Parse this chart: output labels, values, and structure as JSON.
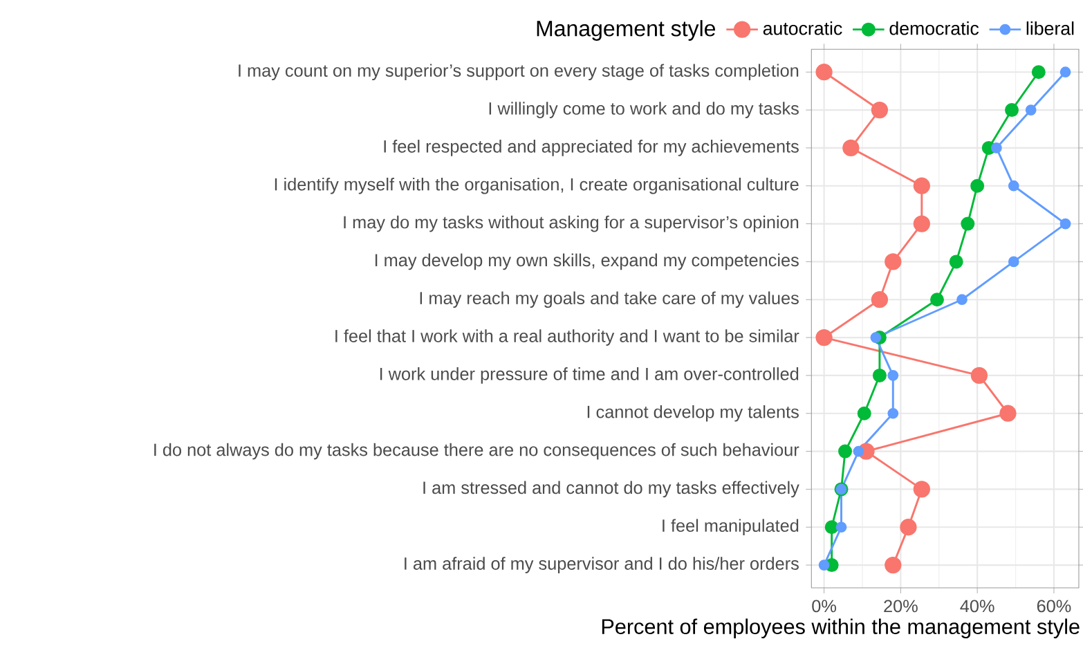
{
  "chart_data": {
    "type": "line",
    "orientation": "horizontal",
    "xlabel": "Percent of employees within the management style",
    "legend_title": "Management style",
    "legend": "top",
    "grid": true,
    "marker": "circle",
    "categories": [
      "I may count on my superior’s support on every stage of tasks completion",
      "I willingly come to work and do my tasks",
      "I feel respected and appreciated for my achievements",
      "I identify myself with the organisation, I create organisational culture",
      "I may do my tasks without asking for a supervisor’s opinion",
      "I may develop my own skills, expand my competencies",
      "I may reach my goals and take care of my values",
      "I feel that I work with a real authority and I want to be similar",
      "I work under pressure of time and I am over-controlled",
      "I cannot develop my talents",
      "I do not always do my tasks because there are no consequences of such behaviour",
      "I am stressed and cannot do my tasks effectively",
      "I feel manipulated",
      "I am afraid of my supervisor and I do his/her orders"
    ],
    "series": [
      {
        "name": "autocratic",
        "color": "#F8766D",
        "values": [
          0,
          14.5,
          7,
          25.5,
          25.5,
          18,
          14.5,
          0,
          40.5,
          48,
          11,
          25.5,
          22,
          18
        ]
      },
      {
        "name": "democratic",
        "color": "#00BA38",
        "values": [
          56,
          49,
          43,
          40,
          37.5,
          34.5,
          29.5,
          14.5,
          14.5,
          10.5,
          5.5,
          4.5,
          2,
          2
        ]
      },
      {
        "name": "liberal",
        "color": "#619CFF",
        "values": [
          63,
          54,
          45,
          49.5,
          63,
          49.5,
          36,
          13.5,
          18,
          18,
          9,
          4.5,
          4.5,
          0
        ]
      }
    ],
    "xlim": [
      -3.3,
      66.5
    ],
    "xticks": [
      {
        "value": 0,
        "label": "0%"
      },
      {
        "value": 20,
        "label": "20%"
      },
      {
        "value": 40,
        "label": "40%"
      },
      {
        "value": 60,
        "label": "60%"
      }
    ]
  }
}
